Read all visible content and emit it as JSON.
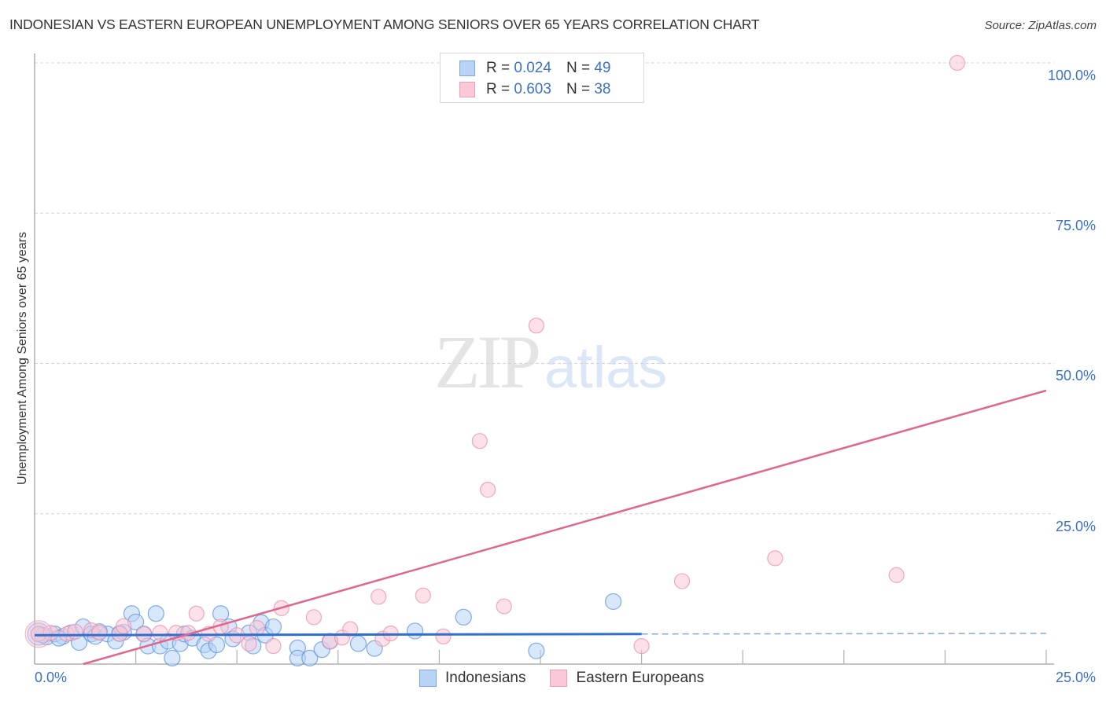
{
  "header": {
    "title": "INDONESIAN VS EASTERN EUROPEAN UNEMPLOYMENT AMONG SENIORS OVER 65 YEARS CORRELATION CHART",
    "source": "Source: ZipAtlas.com"
  },
  "axes": {
    "ylabel": "Unemployment Among Seniors over 65 years",
    "yticks": [
      "100.0%",
      "75.0%",
      "50.0%",
      "25.0%"
    ],
    "xticks": [
      "0.0%",
      "25.0%"
    ]
  },
  "legend_top": {
    "rows": [
      {
        "r_label": "R = ",
        "r_value": "0.024",
        "n_label": "N = ",
        "n_value": "49",
        "color": "#b8d3f5"
      },
      {
        "r_label": "R = ",
        "r_value": "0.603",
        "n_label": "N = ",
        "n_value": "38",
        "color": "#fac8d6"
      }
    ]
  },
  "legend_bottom": {
    "items": [
      {
        "label": "Indonesians",
        "color": "#b8d3f5"
      },
      {
        "label": "Eastern Europeans",
        "color": "#fac8d6"
      }
    ]
  },
  "watermark": {
    "zip": "ZIP",
    "atlas": "atlas"
  },
  "colors": {
    "blue_fill": "#b8d3f5",
    "blue_stroke": "#4f8de0",
    "blue_line": "#2f6fd0",
    "pink_fill": "#fac8d6",
    "pink_stroke": "#ec8fab",
    "pink_line": "#e0668e",
    "axis_text": "#3a72c8"
  },
  "chart_data": {
    "type": "scatter",
    "title": "INDONESIAN VS EASTERN EUROPEAN UNEMPLOYMENT AMONG SENIORS OVER 65 YEARS CORRELATION CHART",
    "xlabel": "",
    "ylabel": "Unemployment Among Seniors over 65 years",
    "xlim": [
      0,
      25
    ],
    "ylim": [
      0,
      100
    ],
    "x_tick_labels": [
      "0.0%",
      "25.0%"
    ],
    "y_tick_labels": [
      "25.0%",
      "50.0%",
      "75.0%",
      "100.0%"
    ],
    "grid": true,
    "legend_position": "top-center and bottom",
    "series": [
      {
        "name": "Indonesians",
        "R": 0.024,
        "N": 49,
        "trend": {
          "x": [
            0,
            15
          ],
          "y": [
            4.8,
            5.0
          ],
          "extended_dashed_to_x": 25,
          "extended_y": 5.1
        },
        "points": [
          [
            0.1,
            5.0
          ],
          [
            0.3,
            4.5
          ],
          [
            0.5,
            5.0
          ],
          [
            0.7,
            4.6
          ],
          [
            0.9,
            5.2
          ],
          [
            1.1,
            3.6
          ],
          [
            1.2,
            6.2
          ],
          [
            1.4,
            5.0
          ],
          [
            1.5,
            4.6
          ],
          [
            1.8,
            5.0
          ],
          [
            2.0,
            3.8
          ],
          [
            2.2,
            5.3
          ],
          [
            2.4,
            8.4
          ],
          [
            2.5,
            7.0
          ],
          [
            2.7,
            5.0
          ],
          [
            2.8,
            3.0
          ],
          [
            3.0,
            8.4
          ],
          [
            3.1,
            3.0
          ],
          [
            3.3,
            3.8
          ],
          [
            3.4,
            1.0
          ],
          [
            3.6,
            3.4
          ],
          [
            3.7,
            5.0
          ],
          [
            3.9,
            4.3
          ],
          [
            4.2,
            3.2
          ],
          [
            4.3,
            2.2
          ],
          [
            4.5,
            3.2
          ],
          [
            4.6,
            8.4
          ],
          [
            4.8,
            6.2
          ],
          [
            4.9,
            4.2
          ],
          [
            5.3,
            5.2
          ],
          [
            5.4,
            3.0
          ],
          [
            5.6,
            6.9
          ],
          [
            5.7,
            4.8
          ],
          [
            5.9,
            6.2
          ],
          [
            6.5,
            2.7
          ],
          [
            6.5,
            1.0
          ],
          [
            6.8,
            1.0
          ],
          [
            7.1,
            2.4
          ],
          [
            7.3,
            3.8
          ],
          [
            8.0,
            3.4
          ],
          [
            8.4,
            2.6
          ],
          [
            9.4,
            5.5
          ],
          [
            10.6,
            7.8
          ],
          [
            12.4,
            2.2
          ],
          [
            14.3,
            10.4
          ],
          [
            0.2,
            4.8
          ],
          [
            0.6,
            4.3
          ],
          [
            1.6,
            5.4
          ],
          [
            2.1,
            5.1
          ]
        ]
      },
      {
        "name": "Eastern Europeans",
        "R": 0.603,
        "N": 38,
        "trend": {
          "x": [
            1.2,
            25
          ],
          "y": [
            0,
            45.5
          ]
        },
        "points": [
          [
            0.1,
            5.0
          ],
          [
            0.4,
            5.2
          ],
          [
            0.8,
            5.0
          ],
          [
            1.0,
            5.4
          ],
          [
            1.4,
            5.6
          ],
          [
            1.6,
            5.2
          ],
          [
            2.1,
            5.0
          ],
          [
            2.2,
            6.3
          ],
          [
            2.7,
            5.0
          ],
          [
            3.1,
            5.2
          ],
          [
            3.5,
            5.2
          ],
          [
            3.8,
            5.2
          ],
          [
            4.0,
            8.4
          ],
          [
            4.3,
            5.0
          ],
          [
            4.6,
            6.2
          ],
          [
            5.0,
            4.8
          ],
          [
            5.3,
            3.4
          ],
          [
            5.5,
            6.0
          ],
          [
            5.9,
            3.0
          ],
          [
            6.1,
            9.3
          ],
          [
            6.9,
            7.8
          ],
          [
            7.3,
            3.8
          ],
          [
            7.6,
            4.4
          ],
          [
            7.8,
            5.8
          ],
          [
            8.5,
            11.2
          ],
          [
            8.6,
            4.2
          ],
          [
            8.8,
            5.1
          ],
          [
            9.6,
            11.4
          ],
          [
            10.1,
            4.6
          ],
          [
            11.0,
            37.1
          ],
          [
            11.2,
            29.0
          ],
          [
            12.4,
            56.3
          ],
          [
            11.6,
            9.6
          ],
          [
            15.0,
            3.0
          ],
          [
            16.0,
            13.8
          ],
          [
            18.3,
            17.6
          ],
          [
            21.3,
            14.8
          ],
          [
            22.8,
            100.0
          ]
        ]
      }
    ]
  }
}
